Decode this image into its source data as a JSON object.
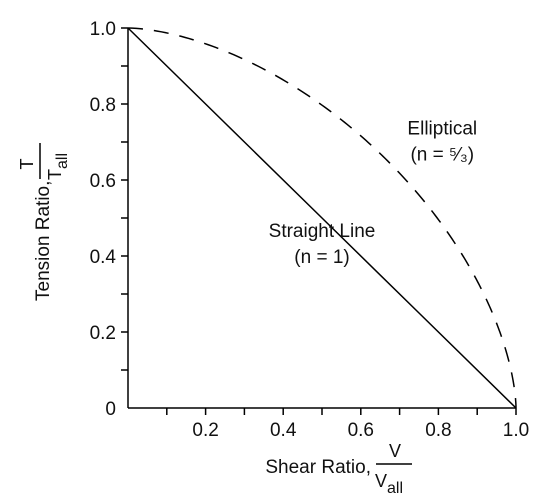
{
  "chart_data": {
    "type": "line",
    "title": "",
    "xlabel": "Shear Ratio,",
    "xlabel_frac": {
      "num": "V",
      "den_main": "V",
      "den_sub": "all"
    },
    "ylabel": "Tension Ratio,",
    "ylabel_frac": {
      "num": "T",
      "den_main": "T",
      "den_sub": "all"
    },
    "xlim": [
      0,
      1.0
    ],
    "ylim": [
      0,
      1.0
    ],
    "x_ticks": [
      0.1,
      0.2,
      0.3,
      0.4,
      0.5,
      0.6,
      0.7,
      0.8,
      0.9,
      1.0
    ],
    "x_tick_labels": [
      {
        "value": 0.2,
        "label": "0.2"
      },
      {
        "value": 0.4,
        "label": "0.4"
      },
      {
        "value": 0.6,
        "label": "0.6"
      },
      {
        "value": 0.8,
        "label": "0.8"
      },
      {
        "value": 1.0,
        "label": "1.0"
      }
    ],
    "y_ticks": [
      0.1,
      0.2,
      0.3,
      0.4,
      0.5,
      0.6,
      0.7,
      0.8,
      0.9,
      1.0
    ],
    "y_tick_labels": [
      {
        "value": 0.0,
        "label": "0"
      },
      {
        "value": 0.2,
        "label": "0.2"
      },
      {
        "value": 0.4,
        "label": "0.4"
      },
      {
        "value": 0.6,
        "label": "0.6"
      },
      {
        "value": 0.8,
        "label": "0.8"
      },
      {
        "value": 1.0,
        "label": "1.0"
      }
    ],
    "grid": false,
    "series": [
      {
        "style": "solid",
        "exponent": 1,
        "x": [
          0.0,
          0.25,
          0.5,
          0.75,
          1.0
        ],
        "y": [
          1.0,
          0.75,
          0.5,
          0.25,
          0.0
        ]
      },
      {
        "style": "dashed",
        "exponent": 1.6667,
        "x": [
          0.0,
          0.1,
          0.2,
          0.3,
          0.4,
          0.5,
          0.6,
          0.7,
          0.8,
          0.9,
          0.95,
          1.0
        ],
        "y": [
          1.0,
          0.987,
          0.961,
          0.925,
          0.879,
          0.822,
          0.751,
          0.664,
          0.556,
          0.413,
          0.314,
          0.0
        ]
      }
    ],
    "annotations": [
      {
        "line1": "Straight Line",
        "line2": "(n = 1)",
        "x": 0.5,
        "y": 0.45
      },
      {
        "line1": "Elliptical",
        "line2": "(n = ⁵⁄₃)",
        "x": 0.81,
        "y": 0.72
      }
    ]
  }
}
